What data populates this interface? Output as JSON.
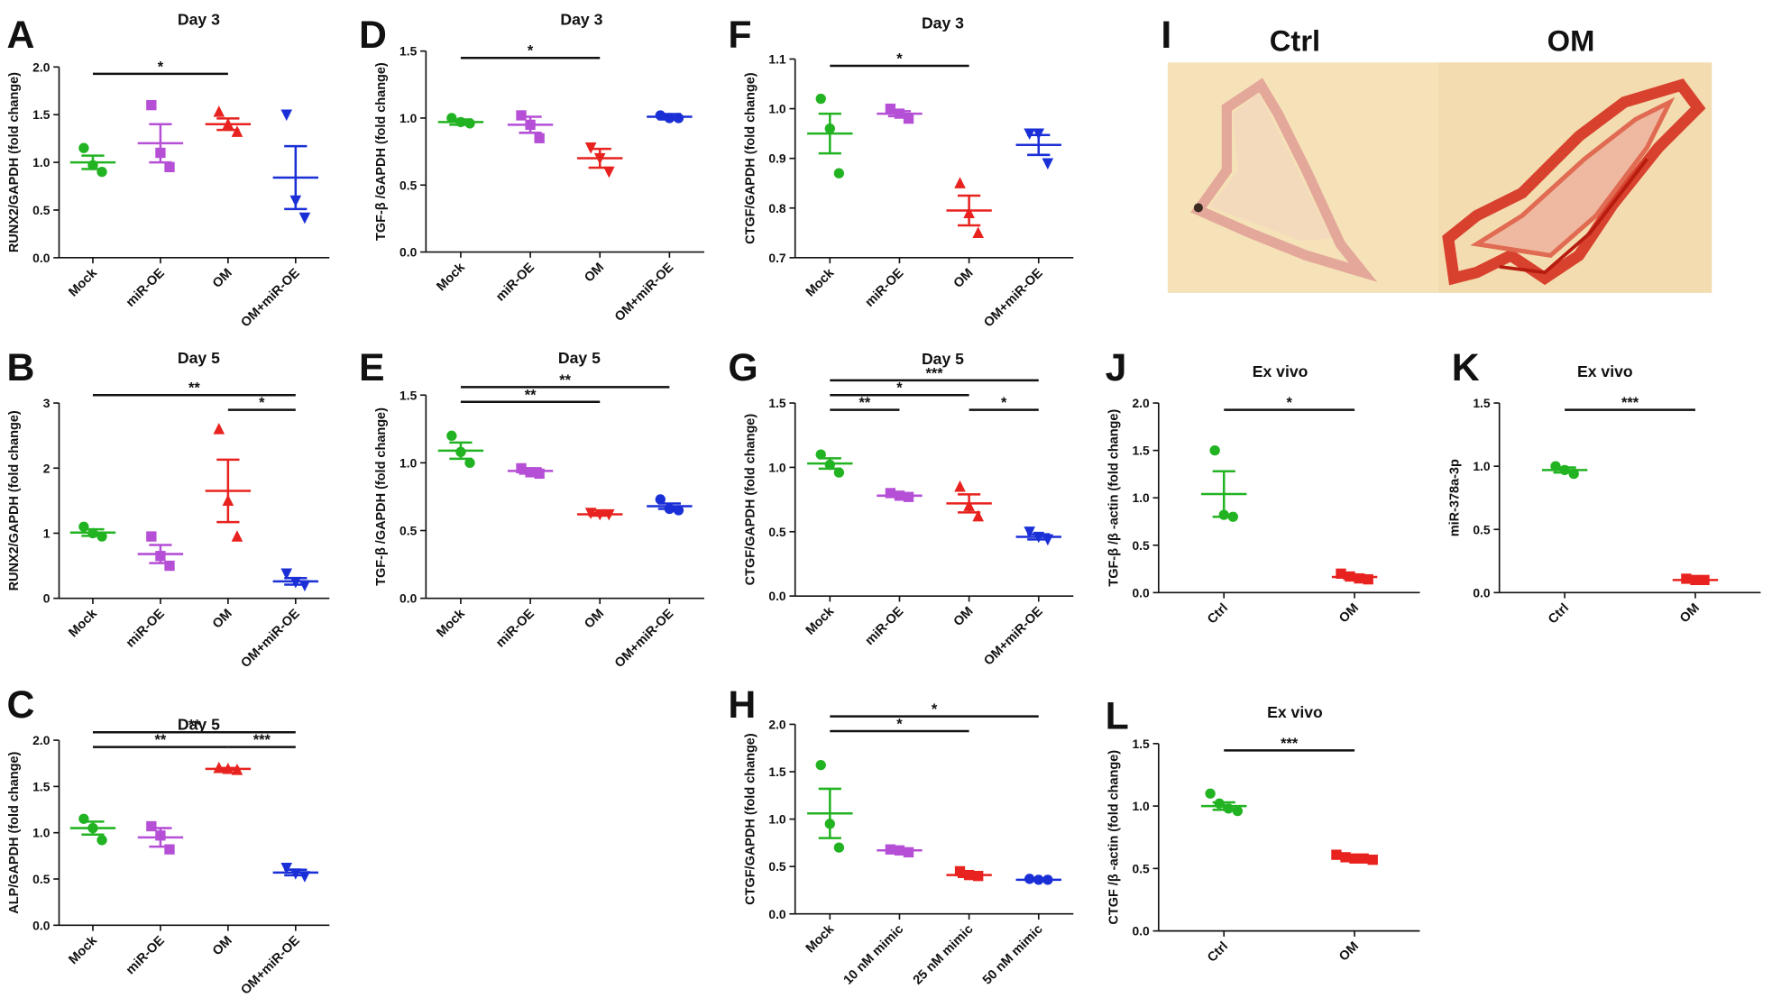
{
  "chart_data": [
    {
      "panel": "A",
      "type": "dotplot",
      "title": "Day 3",
      "y_label": "RUNX2/GAPDH (fold change)",
      "categories": [
        "Mock",
        "miR-OE",
        "OM",
        "OM+miR-OE"
      ],
      "groups": [
        {
          "color": "#22b322",
          "marker": "circle",
          "points": [
            1.15,
            0.97,
            0.9
          ],
          "mean": 1.0,
          "sem": 0.07
        },
        {
          "color": "#b54fd6",
          "marker": "square",
          "points": [
            1.6,
            1.1,
            0.95
          ],
          "mean": 1.2,
          "sem": 0.2
        },
        {
          "color": "#e8221e",
          "marker": "triangle-up",
          "points": [
            1.53,
            1.4,
            1.32
          ],
          "mean": 1.4,
          "sem": 0.06
        },
        {
          "color": "#1a2fd6",
          "marker": "triangle-down",
          "points": [
            1.5,
            0.6,
            0.42
          ],
          "mean": 0.84,
          "sem": 0.33
        }
      ],
      "ylim": [
        0,
        2
      ],
      "yticks": [
        {
          "value": 0,
          "label": "0.0"
        },
        0.5,
        {
          "value": 1,
          "label": "1.0"
        },
        1.5,
        {
          "value": 2,
          "label": "2.0"
        }
      ],
      "significance": [
        {
          "between": [
            "Mock",
            "OM"
          ],
          "label": "*"
        }
      ]
    },
    {
      "panel": "D",
      "type": "dotplot",
      "title": "Day 3",
      "y_label": "TGF-β /GAPDH (fold change)",
      "categories": [
        "Mock",
        "miR-OE",
        "OM",
        "OM+miR-OE"
      ],
      "groups": [
        {
          "color": "#22b322",
          "marker": "circle",
          "points": [
            1.0,
            0.97,
            0.96
          ],
          "mean": 0.97,
          "sem": 0.02
        },
        {
          "color": "#b54fd6",
          "marker": "square",
          "points": [
            1.02,
            0.95,
            0.85
          ],
          "mean": 0.95,
          "sem": 0.06
        },
        {
          "color": "#e8221e",
          "marker": "triangle-down",
          "points": [
            0.78,
            0.7,
            0.6
          ],
          "mean": 0.7,
          "sem": 0.07
        },
        {
          "color": "#1a2fd6",
          "marker": "circle",
          "points": [
            1.02,
            1.0,
            1.0
          ],
          "mean": 1.01,
          "sem": 0.02
        }
      ],
      "ylim": [
        0,
        1.5
      ],
      "yticks": [
        {
          "value": 0,
          "label": "0.0"
        },
        0.5,
        {
          "value": 1,
          "label": "1.0"
        },
        1.5
      ],
      "significance": [
        {
          "between": [
            "Mock",
            "OM"
          ],
          "label": "*"
        }
      ]
    },
    {
      "panel": "F",
      "type": "dotplot",
      "title": "Day 3",
      "y_label": "CTGF/GAPDH (fold change)",
      "categories": [
        "Mock",
        "miR-OE",
        "OM",
        "OM+miR-OE"
      ],
      "groups": [
        {
          "color": "#22b322",
          "marker": "circle",
          "points": [
            1.02,
            0.96,
            0.87
          ],
          "mean": 0.95,
          "sem": 0.04
        },
        {
          "color": "#b54fd6",
          "marker": "square",
          "points": [
            1.0,
            0.99,
            0.98
          ],
          "mean": 0.99,
          "sem": 0.005
        },
        {
          "color": "#e8221e",
          "marker": "triangle-up",
          "points": [
            0.85,
            0.79,
            0.75
          ],
          "mean": 0.795,
          "sem": 0.03
        },
        {
          "color": "#1a2fd6",
          "marker": "triangle-down",
          "points": [
            0.95,
            0.95,
            0.89
          ],
          "mean": 0.927,
          "sem": 0.02
        }
      ],
      "ylim": [
        0.7,
        1.1
      ],
      "yticks": [
        0.7,
        0.8,
        0.9,
        {
          "value": 1,
          "label": "1.0"
        },
        1.1
      ],
      "significance": [
        {
          "between": [
            "Mock",
            "OM"
          ],
          "label": "*"
        }
      ]
    },
    {
      "panel": "B",
      "type": "dotplot",
      "title": "Day 5",
      "y_label": "RUNX2/GAPDH (fold change)",
      "categories": [
        "Mock",
        "miR-OE",
        "OM",
        "OM+miR-OE"
      ],
      "groups": [
        {
          "color": "#22b322",
          "marker": "circle",
          "points": [
            1.1,
            1.0,
            0.95
          ],
          "mean": 1.01,
          "sem": 0.05
        },
        {
          "color": "#b54fd6",
          "marker": "square",
          "points": [
            0.95,
            0.65,
            0.5
          ],
          "mean": 0.68,
          "sem": 0.14
        },
        {
          "color": "#e8221e",
          "marker": "triangle-up",
          "points": [
            2.6,
            1.5,
            0.95
          ],
          "mean": 1.65,
          "sem": 0.48
        },
        {
          "color": "#1a2fd6",
          "marker": "triangle-down",
          "points": [
            0.38,
            0.25,
            0.2
          ],
          "mean": 0.26,
          "sem": 0.05
        }
      ],
      "ylim": [
        0,
        3
      ],
      "yticks": [
        0,
        1,
        2,
        3
      ],
      "significance": [
        {
          "between": [
            "OM",
            "OM+miR-OE"
          ],
          "label": "*"
        },
        {
          "between": [
            "Mock",
            "OM+miR-OE"
          ],
          "label": "**"
        }
      ]
    },
    {
      "panel": "E",
      "type": "dotplot",
      "title": "Day 5",
      "y_label": "TGF-β /GAPDH (fold change)",
      "categories": [
        "Mock",
        "miR-OE",
        "OM",
        "OM+miR-OE"
      ],
      "groups": [
        {
          "color": "#22b322",
          "marker": "circle",
          "points": [
            1.2,
            1.08,
            1.0
          ],
          "mean": 1.09,
          "sem": 0.06
        },
        {
          "color": "#b54fd6",
          "marker": "square",
          "points": [
            0.96,
            0.93,
            0.92
          ],
          "mean": 0.94,
          "sem": 0.02
        },
        {
          "color": "#e8221e",
          "marker": "triangle-down",
          "points": [
            0.63,
            0.62,
            0.62
          ],
          "mean": 0.62,
          "sem": 0.01
        },
        {
          "color": "#1a2fd6",
          "marker": "circle",
          "points": [
            0.73,
            0.66,
            0.65
          ],
          "mean": 0.68,
          "sem": 0.02
        }
      ],
      "ylim": [
        0,
        1.5
      ],
      "yticks": [
        {
          "value": 0,
          "label": "0.0"
        },
        0.5,
        {
          "value": 1,
          "label": "1.0"
        },
        1.5
      ],
      "significance": [
        {
          "between": [
            "Mock",
            "OM"
          ],
          "label": "**"
        },
        {
          "between": [
            "Mock",
            "OM+miR-OE"
          ],
          "label": "**"
        }
      ]
    },
    {
      "panel": "G",
      "type": "dotplot",
      "title": "Day 5",
      "y_label": "CTGF/GAPDH (fold change)",
      "categories": [
        "Mock",
        "miR-OE",
        "OM",
        "OM+miR-OE"
      ],
      "groups": [
        {
          "color": "#22b322",
          "marker": "circle",
          "points": [
            1.1,
            1.02,
            0.96
          ],
          "mean": 1.03,
          "sem": 0.04
        },
        {
          "color": "#b54fd6",
          "marker": "square",
          "points": [
            0.8,
            0.78,
            0.77
          ],
          "mean": 0.78,
          "sem": 0.01
        },
        {
          "color": "#e8221e",
          "marker": "triangle-up",
          "points": [
            0.85,
            0.7,
            0.62
          ],
          "mean": 0.72,
          "sem": 0.07
        },
        {
          "color": "#1a2fd6",
          "marker": "triangle-down",
          "points": [
            0.5,
            0.46,
            0.44
          ],
          "mean": 0.46,
          "sem": 0.02
        }
      ],
      "ylim": [
        0,
        1.5
      ],
      "yticks": [
        {
          "value": 0,
          "label": "0.0"
        },
        0.5,
        {
          "value": 1,
          "label": "1.0"
        },
        1.5
      ],
      "significance": [
        {
          "between": [
            "Mock",
            "miR-OE"
          ],
          "label": "**"
        },
        {
          "between": [
            "Mock",
            "OM"
          ],
          "label": "*"
        },
        {
          "between": [
            "OM",
            "OM+miR-OE"
          ],
          "label": "*"
        },
        {
          "between": [
            "Mock",
            "OM+miR-OE"
          ],
          "label": "***"
        }
      ]
    },
    {
      "panel": "C",
      "type": "dotplot",
      "title": "Day 5",
      "y_label": "ALP/GAPDH (fold change)",
      "categories": [
        "Mock",
        "miR-OE",
        "OM",
        "OM+miR-OE"
      ],
      "groups": [
        {
          "color": "#22b322",
          "marker": "circle",
          "points": [
            1.15,
            1.05,
            0.92
          ],
          "mean": 1.05,
          "sem": 0.07
        },
        {
          "color": "#b54fd6",
          "marker": "square",
          "points": [
            1.07,
            0.97,
            0.82
          ],
          "mean": 0.95,
          "sem": 0.1
        },
        {
          "color": "#e8221e",
          "marker": "triangle-up",
          "points": [
            1.7,
            1.69,
            1.68
          ],
          "mean": 1.69,
          "sem": 0.01
        },
        {
          "color": "#1a2fd6",
          "marker": "triangle-down",
          "points": [
            0.62,
            0.56,
            0.53
          ],
          "mean": 0.57,
          "sem": 0.03
        }
      ],
      "ylim": [
        0,
        2
      ],
      "yticks": [
        {
          "value": 0,
          "label": "0.0"
        },
        0.5,
        {
          "value": 1,
          "label": "1.0"
        },
        1.5,
        {
          "value": 2,
          "label": "2.0"
        }
      ],
      "significance": [
        {
          "between": [
            "Mock",
            "OM"
          ],
          "label": "**"
        },
        {
          "between": [
            "OM",
            "OM+miR-OE"
          ],
          "label": "***"
        },
        {
          "between": [
            "Mock",
            "OM+miR-OE"
          ],
          "label": "**"
        }
      ]
    },
    {
      "panel": "H",
      "type": "dotplot",
      "y_label": "CTGF/GAPDH (fold change)",
      "categories": [
        "Mock",
        "10 nM mimic",
        "25 nM mimic",
        "50 nM mimic"
      ],
      "groups": [
        {
          "color": "#22b322",
          "marker": "circle",
          "points": [
            1.57,
            0.95,
            0.7
          ],
          "mean": 1.06,
          "sem": 0.26
        },
        {
          "color": "#b54fd6",
          "marker": "square",
          "points": [
            0.68,
            0.67,
            0.65
          ],
          "mean": 0.67,
          "sem": 0.02
        },
        {
          "color": "#e8221e",
          "marker": "square",
          "points": [
            0.45,
            0.41,
            0.4
          ],
          "mean": 0.41,
          "sem": 0.02
        },
        {
          "color": "#1a2fd6",
          "marker": "circle",
          "points": [
            0.37,
            0.36,
            0.36
          ],
          "mean": 0.36,
          "sem": 0.01
        }
      ],
      "ylim": [
        0,
        2
      ],
      "yticks": [
        {
          "value": 0,
          "label": "0.0"
        },
        0.5,
        {
          "value": 1,
          "label": "1.0"
        },
        1.5,
        {
          "value": 2,
          "label": "2.0"
        }
      ],
      "significance": [
        {
          "between": [
            "Mock",
            "25 nM mimic"
          ],
          "label": "*"
        },
        {
          "between": [
            "Mock",
            "50 nM mimic"
          ],
          "label": "*"
        }
      ]
    },
    {
      "panel": "J",
      "type": "dotplot",
      "title": "Ex vivo",
      "y_label": "TGF-β /β -actin (fold change)",
      "categories": [
        "Ctrl",
        "OM"
      ],
      "groups": [
        {
          "color": "#22b322",
          "marker": "circle",
          "points": [
            1.5,
            0.82,
            0.8
          ],
          "mean": 1.04,
          "sem": 0.24
        },
        {
          "color": "#e8221e",
          "marker": "square",
          "points": [
            0.2,
            0.17,
            0.15,
            0.14
          ],
          "mean": 0.165,
          "sem": 0.02
        }
      ],
      "ylim": [
        0,
        2
      ],
      "yticks": [
        {
          "value": 0,
          "label": "0.0"
        },
        0.5,
        {
          "value": 1,
          "label": "1.0"
        },
        1.5,
        {
          "value": 2,
          "label": "2.0"
        }
      ],
      "significance": [
        {
          "between": [
            "Ctrl",
            "OM"
          ],
          "label": "*"
        }
      ]
    },
    {
      "panel": "K",
      "type": "dotplot",
      "title": "Ex vivo",
      "y_label": "miR-378a-3p",
      "categories": [
        "Ctrl",
        "OM"
      ],
      "groups": [
        {
          "color": "#22b322",
          "marker": "circle",
          "points": [
            1.0,
            0.97,
            0.94
          ],
          "mean": 0.97,
          "sem": 0.02
        },
        {
          "color": "#e8221e",
          "marker": "square",
          "points": [
            0.11,
            0.1,
            0.1
          ],
          "mean": 0.1,
          "sem": 0.005
        }
      ],
      "ylim": [
        0,
        1.5
      ],
      "yticks": [
        {
          "value": 0,
          "label": "0.0"
        },
        0.5,
        {
          "value": 1,
          "label": "1.0"
        },
        1.5
      ],
      "significance": [
        {
          "between": [
            "Ctrl",
            "OM"
          ],
          "label": "***"
        }
      ]
    },
    {
      "panel": "L",
      "type": "dotplot",
      "title": "Ex vivo",
      "y_label": "CTGF /β -actin (fold change)",
      "categories": [
        "Ctrl",
        "OM"
      ],
      "groups": [
        {
          "color": "#22b322",
          "marker": "circle",
          "points": [
            1.1,
            1.02,
            0.98,
            0.96
          ],
          "mean": 1.0,
          "sem": 0.03
        },
        {
          "color": "#e8221e",
          "marker": "square",
          "points": [
            0.61,
            0.59,
            0.58,
            0.58,
            0.57
          ],
          "mean": 0.585,
          "sem": 0.01
        }
      ],
      "ylim": [
        0,
        1.5
      ],
      "yticks": [
        {
          "value": 0,
          "label": "0.0"
        },
        0.5,
        {
          "value": 1,
          "label": "1.0"
        },
        1.5
      ],
      "significance": [
        {
          "between": [
            "Ctrl",
            "OM"
          ],
          "label": "***"
        }
      ]
    }
  ],
  "image_panel": {
    "panel": "I",
    "labels": [
      "Ctrl",
      "OM"
    ]
  }
}
